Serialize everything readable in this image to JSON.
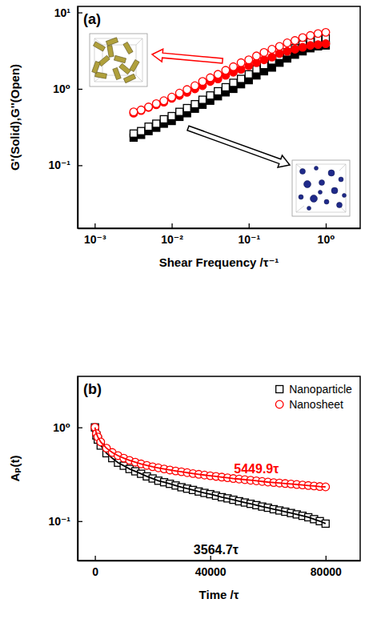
{
  "chart_data": [
    {
      "type": "scatter",
      "title": "(a)",
      "x_label": "Shear Frequency /τ⁻¹",
      "y_label": "G'(Solid),G''(Open)",
      "log": true,
      "xlim": [
        0.0006,
        2.8
      ],
      "ylim": [
        0.015,
        12
      ],
      "xticks": [
        {
          "value": 0.001,
          "label": "10⁻³"
        },
        {
          "value": 0.01,
          "label": "10⁻²"
        },
        {
          "value": 0.1,
          "label": "10⁻¹"
        },
        {
          "value": 1,
          "label": "10⁰"
        }
      ],
      "yticks": [
        {
          "value": 0.1,
          "label": "10⁻¹"
        },
        {
          "value": 1,
          "label": "10⁰"
        },
        {
          "value": 10,
          "label": "10¹"
        }
      ],
      "x": [
        0.0032,
        0.004,
        0.005,
        0.0063,
        0.0079,
        0.01,
        0.0126,
        0.0158,
        0.02,
        0.0251,
        0.0316,
        0.0398,
        0.0501,
        0.0631,
        0.0794,
        0.1,
        0.126,
        0.158,
        0.2,
        0.251,
        0.316,
        0.398,
        0.501,
        0.631,
        0.794,
        1.0
      ],
      "series": [
        {
          "color": "#000000",
          "marker": "square",
          "values": [
            0.23,
            0.25,
            0.28,
            0.31,
            0.35,
            0.38,
            0.43,
            0.48,
            0.55,
            0.62,
            0.7,
            0.8,
            0.9,
            1.0,
            1.15,
            1.3,
            1.5,
            1.7,
            1.9,
            2.2,
            2.5,
            2.8,
            3.1,
            3.4,
            3.6,
            3.7
          ]
        },
        {
          "color": "#000000",
          "marker": "square-open",
          "values": [
            0.26,
            0.28,
            0.32,
            0.35,
            0.4,
            0.44,
            0.5,
            0.56,
            0.63,
            0.72,
            0.82,
            0.93,
            1.05,
            1.2,
            1.35,
            1.55,
            1.8,
            2.05,
            2.35,
            2.7,
            3.0,
            3.4,
            3.8,
            4.1,
            4.4,
            4.6
          ]
        },
        {
          "color": "#ff0000",
          "marker": "circle",
          "values": [
            0.48,
            0.52,
            0.57,
            0.62,
            0.67,
            0.75,
            0.82,
            0.9,
            1.0,
            1.1,
            1.25,
            1.35,
            1.5,
            1.65,
            1.8,
            2.0,
            2.2,
            2.4,
            2.6,
            2.9,
            3.1,
            3.3,
            3.5,
            3.7,
            3.8,
            3.9
          ]
        },
        {
          "color": "#ff0000",
          "marker": "circle-open",
          "values": [
            0.5,
            0.53,
            0.58,
            0.64,
            0.7,
            0.78,
            0.88,
            0.98,
            1.1,
            1.25,
            1.4,
            1.55,
            1.75,
            1.95,
            2.2,
            2.4,
            2.7,
            3.0,
            3.3,
            3.6,
            4.0,
            4.3,
            4.7,
            5.0,
            5.3,
            5.5
          ]
        }
      ]
    },
    {
      "type": "scatter",
      "title": "(b)",
      "x_label": "Time /τ",
      "y_label": "Aₚ(t)",
      "log": "y",
      "xlim": [
        -6000,
        92000
      ],
      "ylim": [
        0.038,
        3.5
      ],
      "xticks": [
        0,
        40000,
        80000
      ],
      "yticks": [
        {
          "value": 0.1,
          "label": "10⁻¹"
        },
        {
          "value": 1,
          "label": "10⁰"
        }
      ],
      "legend": "top-right",
      "x": [
        0,
        500,
        1000,
        2000,
        4000,
        6000,
        8000,
        10000,
        12000,
        14000,
        16000,
        18000,
        20000,
        22000,
        24000,
        26000,
        28000,
        30000,
        32000,
        34000,
        36000,
        38000,
        40000,
        42000,
        44000,
        46000,
        48000,
        50000,
        52000,
        54000,
        56000,
        58000,
        60000,
        62000,
        64000,
        66000,
        68000,
        70000,
        72000,
        74000,
        76000,
        78000,
        80000
      ],
      "series": [
        {
          "name": "Nanoparticle",
          "color": "#000000",
          "marker": "square-open",
          "line_style": "solid",
          "values": [
            1.0,
            0.82,
            0.74,
            0.64,
            0.53,
            0.47,
            0.42,
            0.39,
            0.36,
            0.34,
            0.32,
            0.3,
            0.285,
            0.27,
            0.26,
            0.25,
            0.24,
            0.23,
            0.222,
            0.215,
            0.207,
            0.2,
            0.194,
            0.187,
            0.18,
            0.175,
            0.169,
            0.163,
            0.158,
            0.153,
            0.148,
            0.143,
            0.139,
            0.134,
            0.13,
            0.126,
            0.122,
            0.118,
            0.114,
            0.11,
            0.105,
            0.1,
            0.094
          ]
        },
        {
          "name": "Nanosheet",
          "color": "#ff0000",
          "marker": "circle-open",
          "line_style": "solid",
          "values": [
            1.0,
            0.86,
            0.79,
            0.7,
            0.6,
            0.54,
            0.5,
            0.47,
            0.445,
            0.425,
            0.408,
            0.393,
            0.38,
            0.37,
            0.36,
            0.351,
            0.343,
            0.336,
            0.329,
            0.322,
            0.316,
            0.31,
            0.305,
            0.3,
            0.295,
            0.29,
            0.285,
            0.281,
            0.277,
            0.273,
            0.269,
            0.265,
            0.261,
            0.258,
            0.255,
            0.252,
            0.249,
            0.246,
            0.243,
            0.24,
            0.237,
            0.234,
            0.232
          ]
        }
      ],
      "annotations": [
        {
          "text": "5449.9τ",
          "color": "#ff0000",
          "x": 56000,
          "y": 0.36
        },
        {
          "text": "3564.7τ",
          "color": "#000000",
          "x": 42000,
          "y": 0.05
        }
      ]
    }
  ]
}
